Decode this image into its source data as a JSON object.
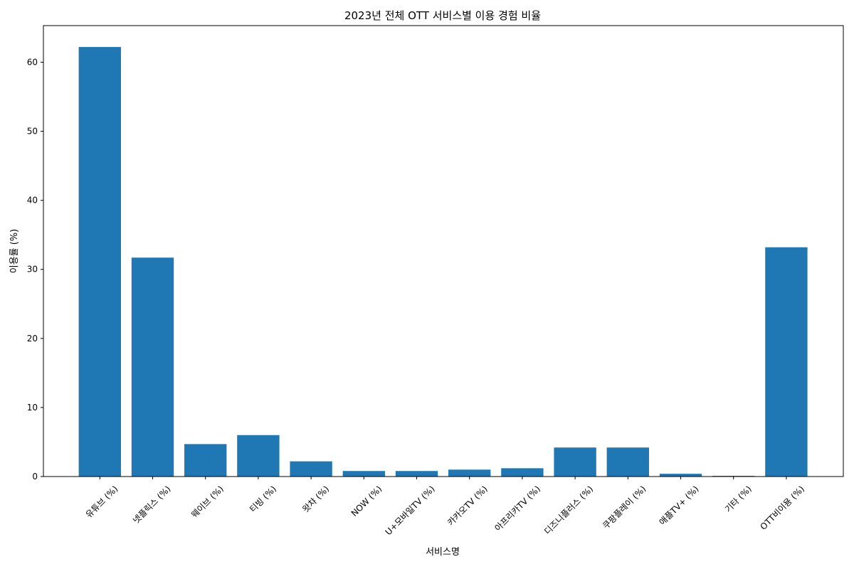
{
  "chart_data": {
    "type": "bar",
    "title": "2023년 전체 OTT 서비스별 이용 경험 비율",
    "xlabel": "서비스명",
    "ylabel": "이용률 (%)",
    "categories": [
      "유튜브 (%)",
      "넷플릭스 (%)",
      "웨이브 (%)",
      "티빙 (%)",
      "왓챠 (%)",
      "NOW (%)",
      "U+모바일TV (%)",
      "카카오TV (%)",
      "아프리카TV (%)",
      "디즈니플러스 (%)",
      "쿠팡플레이 (%)",
      "애플TV+ (%)",
      "기타 (%)",
      "OTT비이용 (%)"
    ],
    "values": [
      62.2,
      31.7,
      4.7,
      6.0,
      2.2,
      0.8,
      0.8,
      1.0,
      1.2,
      4.2,
      4.2,
      0.4,
      0.1,
      33.2
    ],
    "ylim": [
      0,
      65.3
    ],
    "yticks": [
      0,
      10,
      20,
      30,
      40,
      50,
      60
    ],
    "grid": false,
    "legend": "none",
    "bar_color": "#1f77b4"
  }
}
